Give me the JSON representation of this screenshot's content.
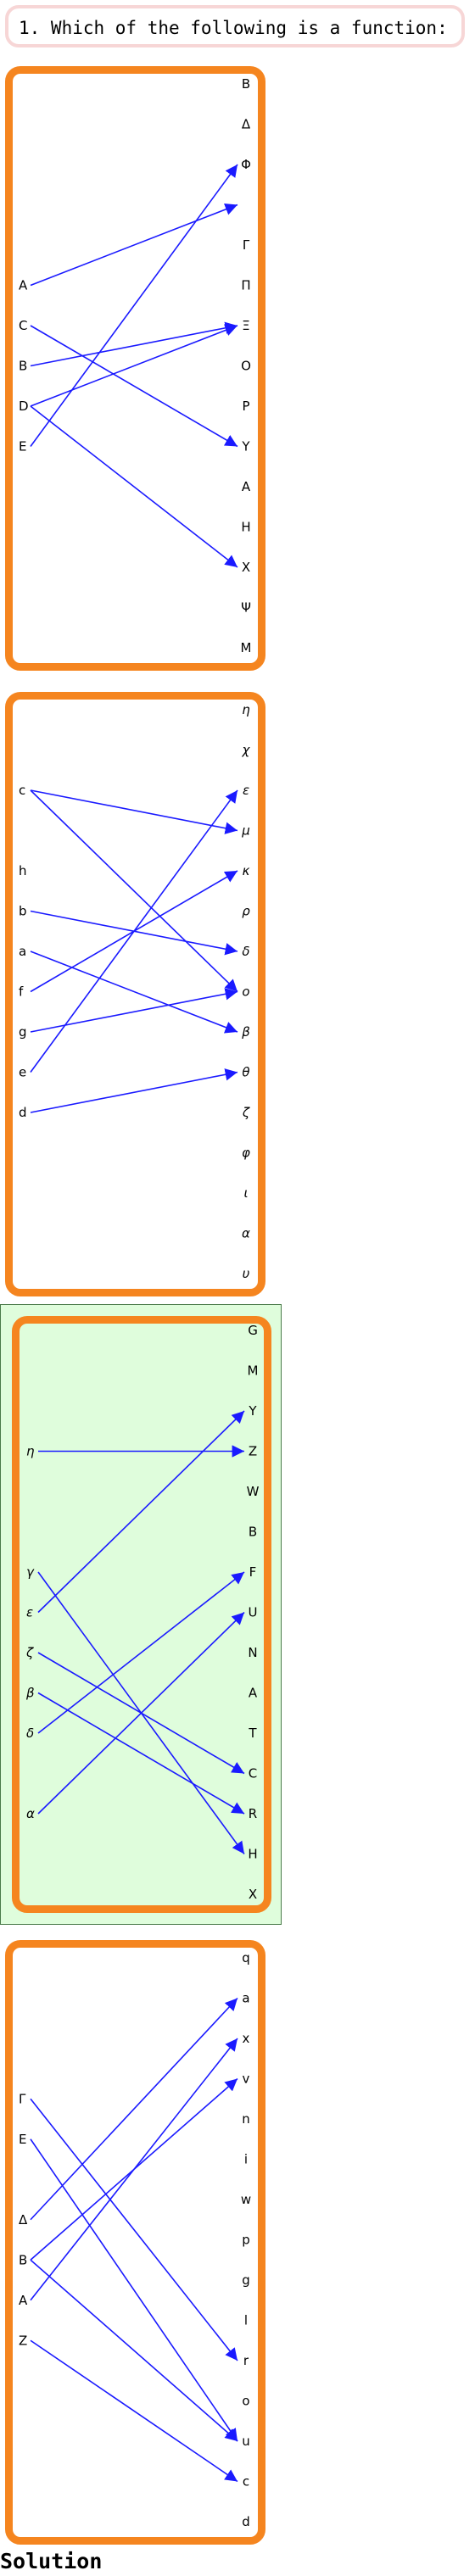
{
  "question": {
    "text": "1. Which of the following is a function:"
  },
  "solution_label": "Solution",
  "colors": {
    "panel_border": "#f5851f",
    "arrow": "#1a1aff",
    "highlight_bg": "#dffddc",
    "question_border": "#f7d6d6"
  },
  "options": [
    {
      "highlighted": false,
      "italic_left": false,
      "italic_right": false,
      "left": [
        "A",
        "C",
        "B",
        "D",
        "E"
      ],
      "right": [
        "Β",
        "Δ",
        "Φ",
        "",
        "Γ",
        "Π",
        "Ξ",
        "Ο",
        "Ρ",
        "Υ",
        "Α",
        "Η",
        "Χ",
        "Ψ",
        "Μ"
      ],
      "arrows": [
        [
          0,
          3
        ],
        [
          1,
          9
        ],
        [
          2,
          6
        ],
        [
          3,
          6
        ],
        [
          3,
          12
        ],
        [
          4,
          2
        ]
      ]
    },
    {
      "highlighted": false,
      "italic_left": false,
      "italic_right": true,
      "left": [
        "c",
        "h",
        "b",
        "a",
        "f",
        "g",
        "e",
        "d"
      ],
      "right": [
        "η",
        "χ",
        "ε",
        "μ",
        "κ",
        "ρ",
        "δ",
        "o",
        "β",
        "θ",
        "ζ",
        "φ",
        "ι",
        "α",
        "υ"
      ],
      "arrows": [
        [
          0,
          3
        ],
        [
          0,
          7
        ],
        [
          2,
          6
        ],
        [
          3,
          8
        ],
        [
          4,
          4
        ],
        [
          5,
          7
        ],
        [
          6,
          2
        ],
        [
          7,
          9
        ]
      ]
    },
    {
      "highlighted": true,
      "italic_left": true,
      "italic_right": false,
      "left": [
        "η",
        "γ",
        "ε",
        "ζ",
        "β",
        "δ",
        "α"
      ],
      "right": [
        "G",
        "M",
        "Y",
        "Z",
        "W",
        "B",
        "F",
        "U",
        "N",
        "A",
        "T",
        "C",
        "R",
        "H",
        "X"
      ],
      "arrows": [
        [
          0,
          3
        ],
        [
          1,
          13
        ],
        [
          2,
          2
        ],
        [
          3,
          11
        ],
        [
          4,
          12
        ],
        [
          5,
          6
        ],
        [
          6,
          7
        ]
      ]
    },
    {
      "highlighted": false,
      "italic_left": false,
      "italic_right": false,
      "left": [
        "Γ",
        "Ε",
        "Δ",
        "Β",
        "Α",
        "Ζ"
      ],
      "right": [
        "q",
        "a",
        "x",
        "v",
        "n",
        "i",
        "w",
        "p",
        "g",
        "l",
        "r",
        "o",
        "u",
        "c",
        "d"
      ],
      "arrows": [
        [
          0,
          10
        ],
        [
          1,
          12
        ],
        [
          2,
          1
        ],
        [
          3,
          3
        ],
        [
          3,
          12
        ],
        [
          4,
          2
        ],
        [
          5,
          13
        ]
      ]
    }
  ]
}
